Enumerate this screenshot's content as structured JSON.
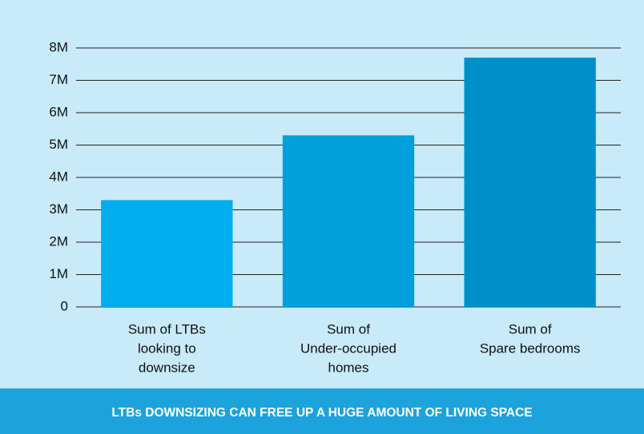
{
  "chart_data": {
    "type": "bar",
    "title": "LTBs DOWNSIZING CAN FREE UP A HUGE AMOUNT OF LIVING SPACE",
    "categories": [
      [
        "Sum of LTBs",
        "looking to",
        "downsize"
      ],
      [
        "Sum of",
        "Under-occupied",
        "homes"
      ],
      [
        "Sum of",
        "Spare bedrooms"
      ]
    ],
    "values": [
      3300000,
      5300000,
      7700000
    ],
    "colors": [
      "#00aeef",
      "#00a0dc",
      "#0090c9"
    ],
    "ylim": [
      0,
      8000000
    ],
    "yticks": [
      0,
      {
        "value": 1000000,
        "label": "1M"
      },
      {
        "value": 2000000,
        "label": "2M"
      },
      {
        "value": 3000000,
        "label": "3M"
      },
      {
        "value": 4000000,
        "label": "4M"
      },
      {
        "value": 5000000,
        "label": "5M"
      },
      {
        "value": 6000000,
        "label": "6M"
      },
      {
        "value": 7000000,
        "label": "7M"
      },
      {
        "value": 8000000,
        "label": "8M"
      }
    ],
    "grid": true
  }
}
